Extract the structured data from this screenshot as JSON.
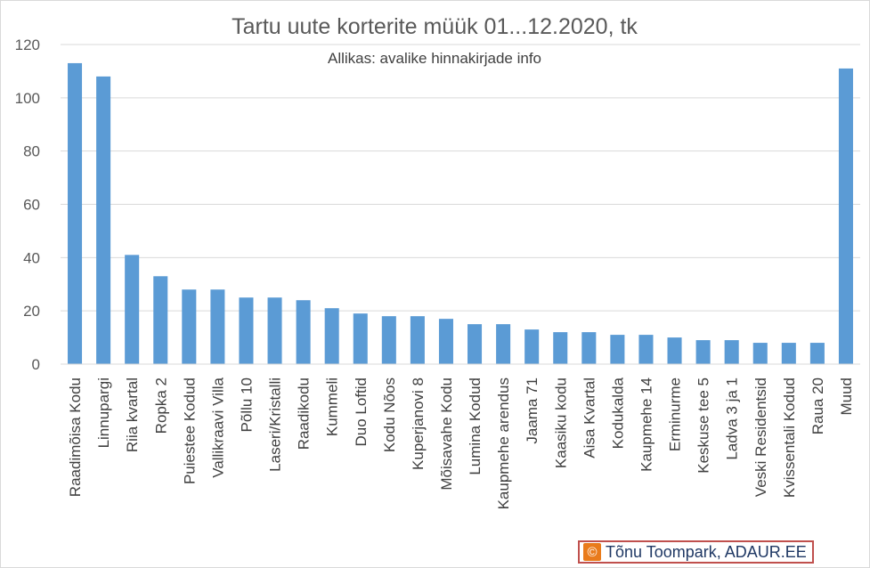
{
  "chart_data": {
    "type": "bar",
    "title": "Tartu uute korterite müük 01...12.2020, tk",
    "subtitle": "Allikas: avalike hinnakirjade info",
    "categories": [
      "Raadimõisa Kodu",
      "Linnupargi",
      "Riia kvartal",
      "Ropka 2",
      "Puiestee Kodud",
      "Vallikraavi Villa",
      "Põllu 10",
      "Laseri/Kristalli",
      "Raadikodu",
      "Kummeli",
      "Duo Loftid",
      "Kodu Nõos",
      "Kuperjanovi 8",
      "Mõisavahe Kodu",
      "Lumina Kodud",
      "Kaupmehe arendus",
      "Jaama 71",
      "Kaasiku kodu",
      "Aisa Kvartal",
      "Kodukalda",
      "Kaupmehe 14",
      "Erminurme",
      "Keskuse tee 5",
      "Ladva 3 ja 1",
      "Veski Residentsid",
      "Kvissentali Kodud",
      "Raua 20",
      "Muud"
    ],
    "values": [
      113,
      108,
      41,
      33,
      28,
      28,
      25,
      25,
      24,
      21,
      19,
      18,
      18,
      17,
      15,
      15,
      13,
      12,
      12,
      11,
      11,
      10,
      9,
      9,
      8,
      8,
      8,
      111
    ],
    "ylim": [
      0,
      120
    ],
    "yticks": [
      "0",
      "20",
      "40",
      "60",
      "80",
      "100",
      "120"
    ],
    "grid": true,
    "bar_color": "#5b9bd5",
    "xlabel": "",
    "ylabel": ""
  },
  "credit": {
    "icon": "copyright-icon",
    "symbol": "©",
    "text": "Tõnu Toompark, ADAUR.EE",
    "border_color": "#c0504d",
    "icon_color": "#e97b1b"
  }
}
